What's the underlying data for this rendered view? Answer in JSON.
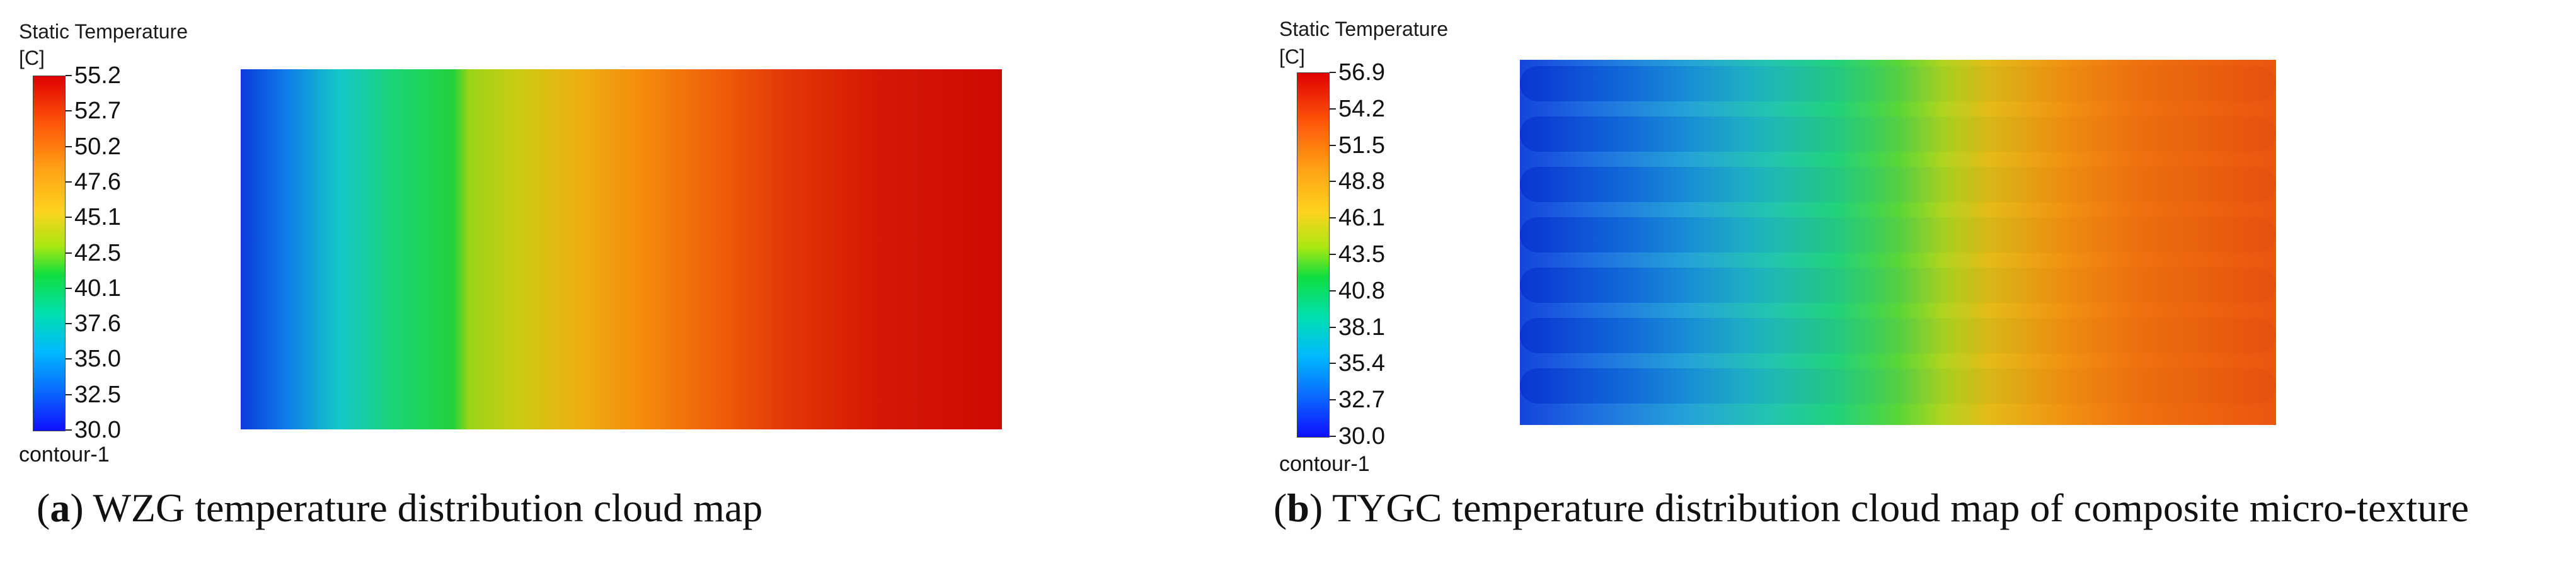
{
  "panel_a": {
    "legend_title": "Static Temperature",
    "legend_unit": "[C]",
    "ticks": [
      "55.2",
      "52.7",
      "50.2",
      "47.6",
      "45.1",
      "42.5",
      "40.1",
      "37.6",
      "35.0",
      "32.5",
      "30.0"
    ],
    "contour_label": "contour-1",
    "caption_letter": "a",
    "caption_text": "WZG temperature distribution cloud map"
  },
  "panel_b": {
    "legend_title": "Static Temperature",
    "legend_unit": "[C]",
    "ticks": [
      "56.9",
      "54.2",
      "51.5",
      "48.8",
      "46.1",
      "43.5",
      "40.8",
      "38.1",
      "35.4",
      "32.7",
      "30.0"
    ],
    "contour_label": "contour-1",
    "caption_letter": "b",
    "caption_text": "TYGC temperature distribution cloud map of composite micro-texture"
  },
  "colors": {
    "cold": "#1010ff",
    "hot": "#e00000"
  }
}
